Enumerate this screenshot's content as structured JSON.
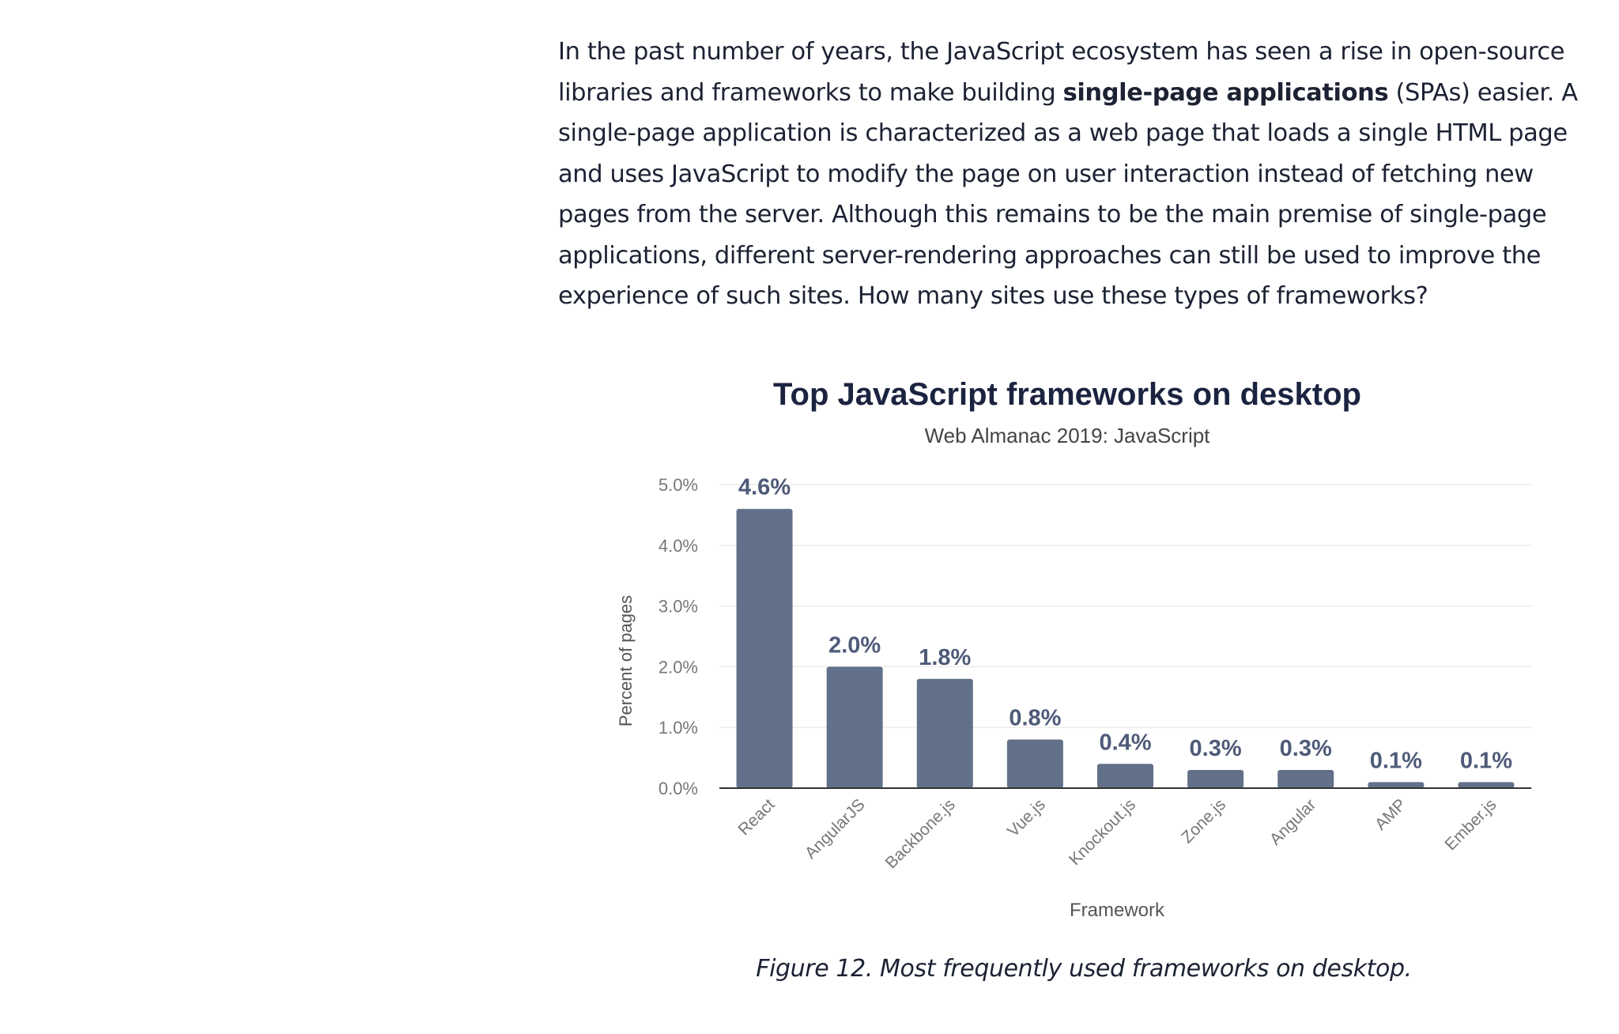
{
  "article": {
    "text_before": "In the past number of years, the JavaScript ecosystem has seen a rise in open-source libraries and frameworks to make building ",
    "bold": "single-page applications",
    "text_after": " (SPAs) easier. A single-page application is characterized as a web page that loads a single HTML page and uses JavaScript to modify the page on user interaction instead of fetching new pages from the server. Although this remains to be the main premise of single-page applications, different server-rendering approaches can still be used to improve the experience of such sites. How many sites use these types of frameworks?"
  },
  "chart_data": {
    "type": "bar",
    "title": "Top JavaScript frameworks on desktop",
    "subtitle": "Web Almanac 2019: JavaScript",
    "xlabel": "Framework",
    "ylabel": "Percent of pages",
    "categories": [
      "React",
      "AngularJS",
      "Backbone.js",
      "Vue.js",
      "Knockout.js",
      "Zone.js",
      "Angular",
      "AMP",
      "Ember.js"
    ],
    "values": [
      4.6,
      2.0,
      1.8,
      0.8,
      0.4,
      0.3,
      0.3,
      0.1,
      0.1
    ],
    "value_labels": [
      "4.6%",
      "2.0%",
      "1.8%",
      "0.8%",
      "0.4%",
      "0.3%",
      "0.3%",
      "0.1%",
      "0.1%"
    ],
    "yticks": [
      "0.0%",
      "1.0%",
      "2.0%",
      "3.0%",
      "4.0%",
      "5.0%"
    ],
    "ylim": [
      0,
      5
    ],
    "grid": true,
    "bar_color": "#627089"
  },
  "caption": "Figure 12. Most frequently used frameworks on desktop."
}
